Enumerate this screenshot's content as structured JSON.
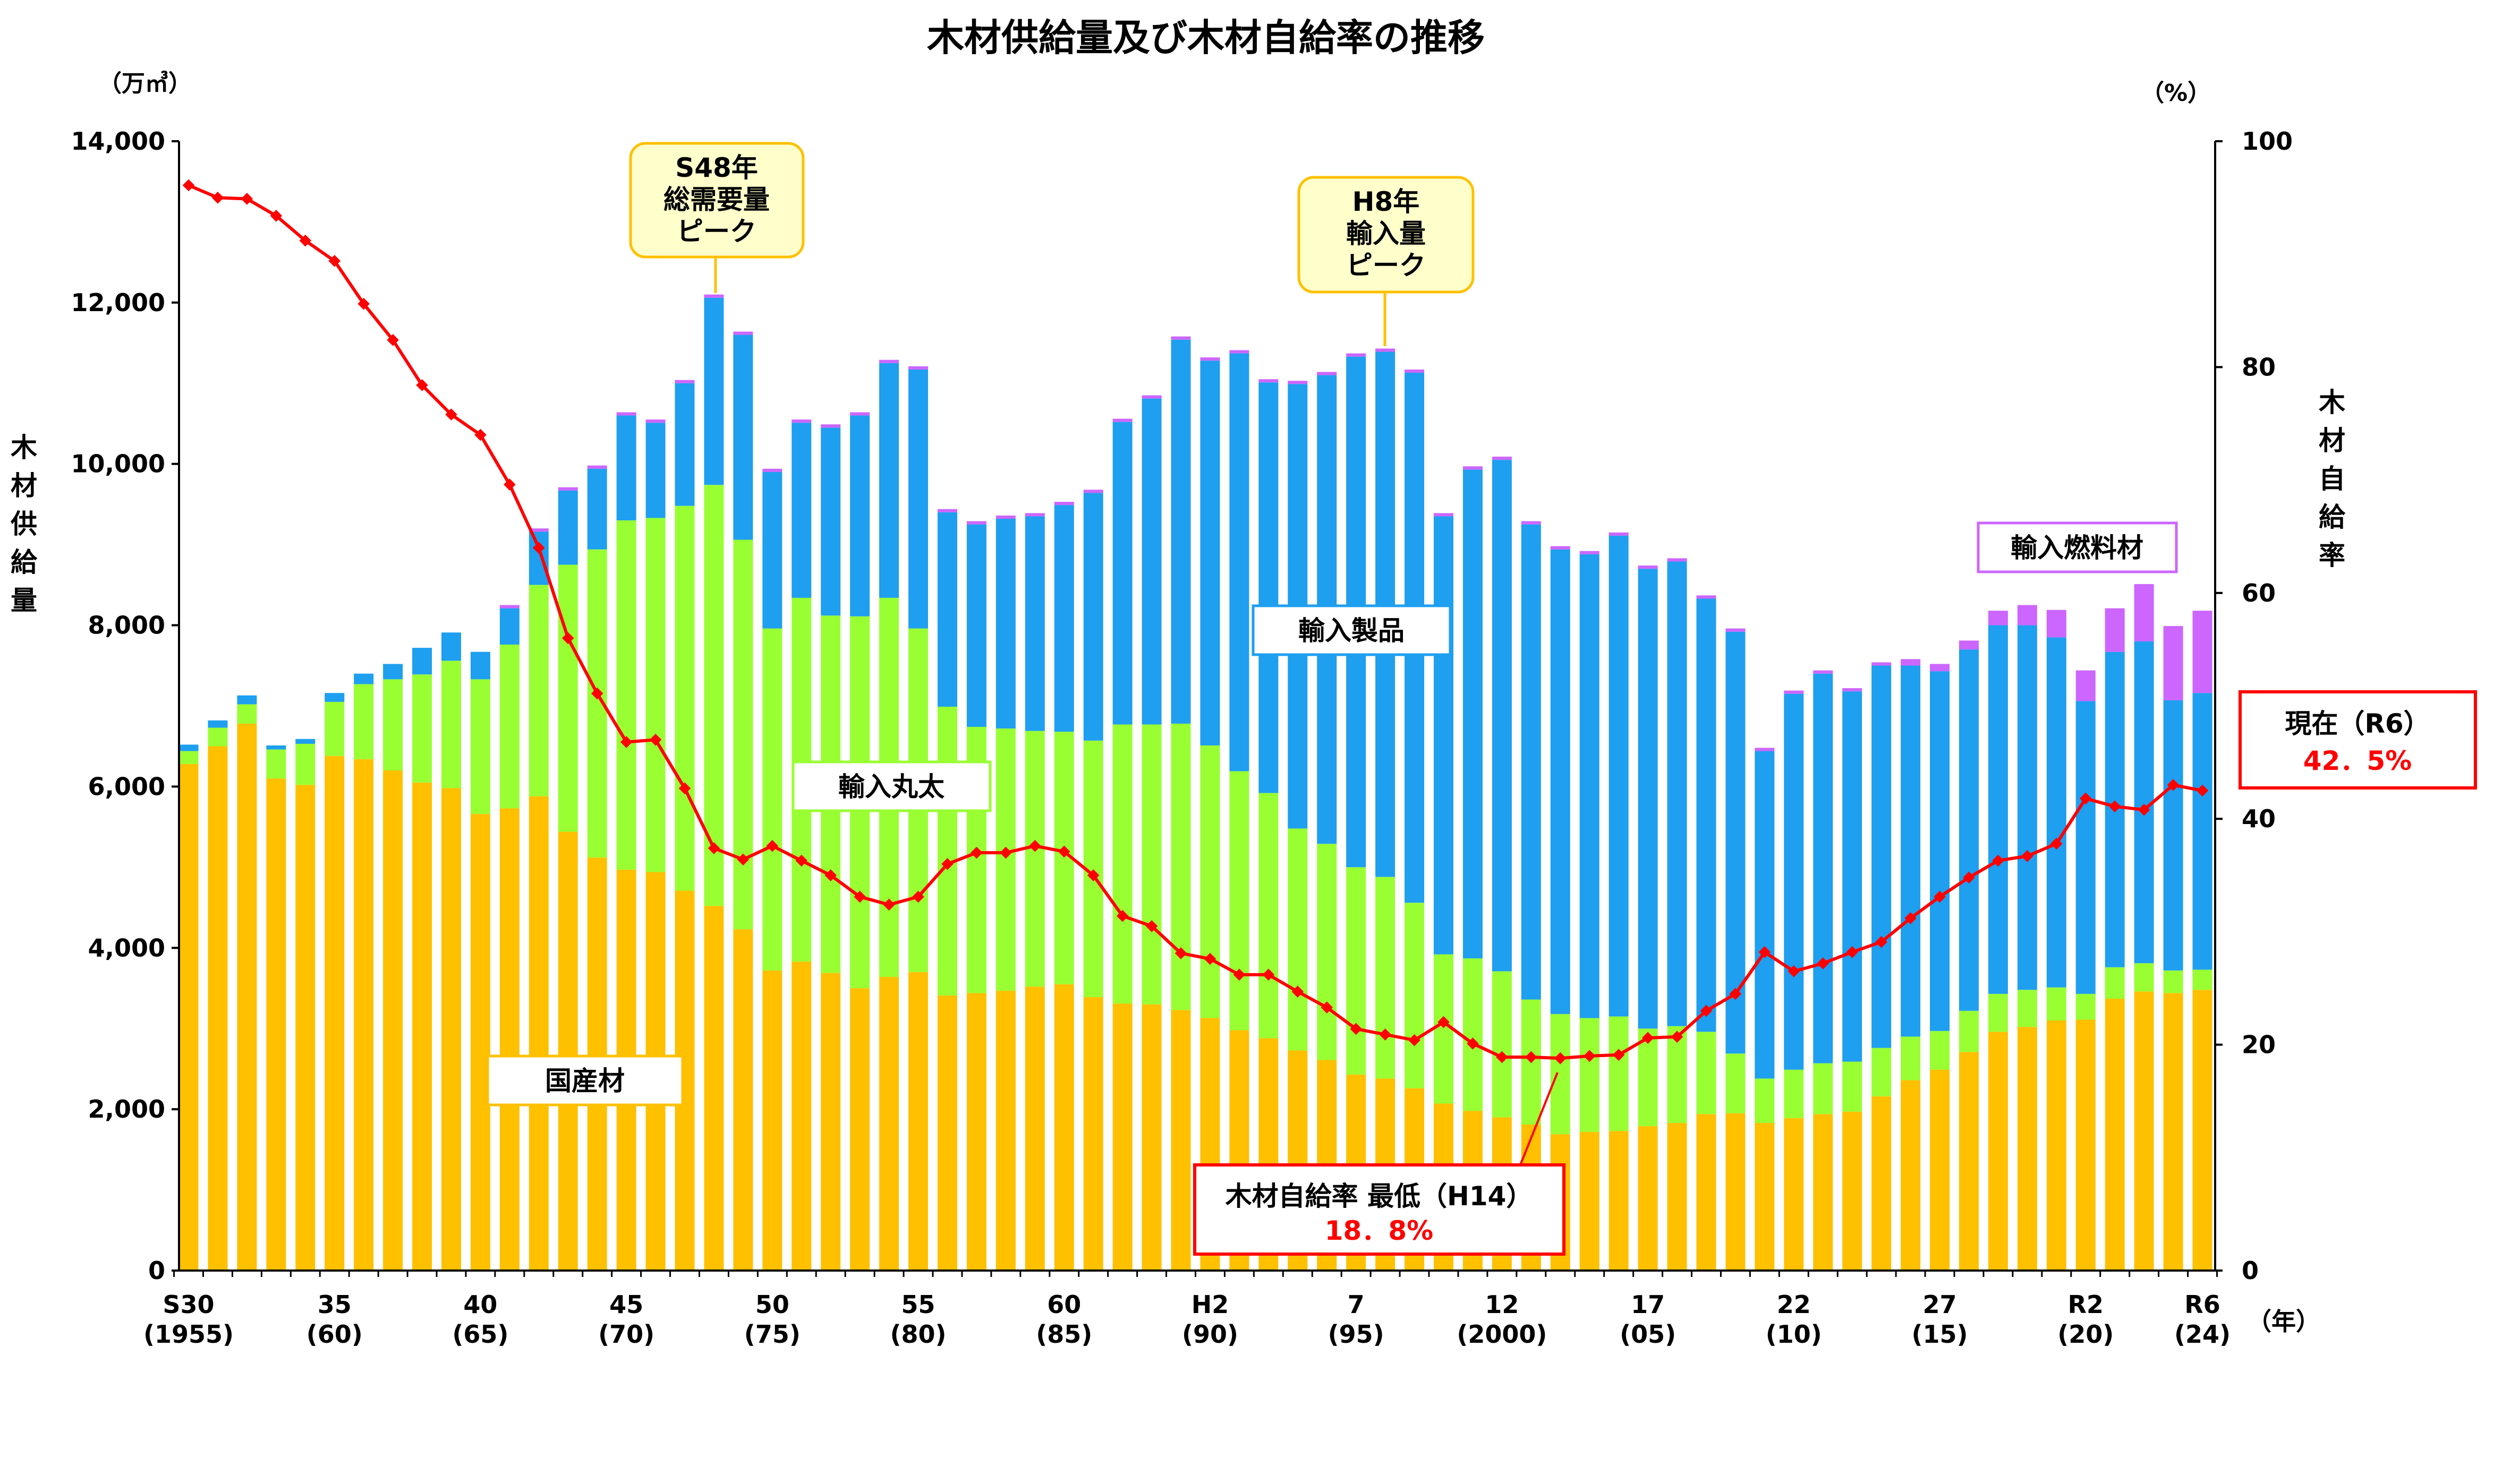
{
  "chart_data": {
    "type": "bar",
    "stacked": true,
    "title": "木材供給量及び木材自給率の推移",
    "y_left_unit": "（万㎥）",
    "y_right_unit": "（%）",
    "ylabel_left": [
      "木",
      "材",
      "供",
      "給",
      "量"
    ],
    "ylabel_right": [
      "木",
      "材",
      "自",
      "給",
      "率"
    ],
    "xlabel_unit": "（年）",
    "ylim_left": [
      0,
      14000
    ],
    "ylim_right": [
      0,
      100
    ],
    "y_left_ticks": [
      "0",
      "2,000",
      "4,000",
      "6,000",
      "8,000",
      "10,000",
      "12,000",
      "14,000"
    ],
    "y_right_ticks": [
      "0",
      "20",
      "40",
      "60",
      "80",
      "100"
    ],
    "x_years": [
      1955,
      1956,
      1957,
      1958,
      1959,
      1960,
      1961,
      1962,
      1963,
      1964,
      1965,
      1966,
      1967,
      1968,
      1969,
      1970,
      1971,
      1972,
      1973,
      1974,
      1975,
      1976,
      1977,
      1978,
      1979,
      1980,
      1981,
      1982,
      1983,
      1984,
      1985,
      1986,
      1987,
      1988,
      1989,
      1990,
      1991,
      1992,
      1993,
      1994,
      1995,
      1996,
      1997,
      1998,
      1999,
      2000,
      2001,
      2002,
      2003,
      2004,
      2005,
      2006,
      2007,
      2008,
      2009,
      2010,
      2011,
      2012,
      2013,
      2014,
      2015,
      2016,
      2017,
      2018,
      2019,
      2020,
      2021,
      2022,
      2023,
      2024
    ],
    "x_tick_labels": [
      {
        "index": 0,
        "era": "S30",
        "year": "(1955)"
      },
      {
        "index": 5,
        "era": "35",
        "year": "(60)"
      },
      {
        "index": 10,
        "era": "40",
        "year": "(65)"
      },
      {
        "index": 15,
        "era": "45",
        "year": "(70)"
      },
      {
        "index": 20,
        "era": "50",
        "year": "(75)"
      },
      {
        "index": 25,
        "era": "55",
        "year": "(80)"
      },
      {
        "index": 30,
        "era": "60",
        "year": "(85)"
      },
      {
        "index": 35,
        "era": "H2",
        "year": "(90)"
      },
      {
        "index": 40,
        "era": "7",
        "year": "(95)"
      },
      {
        "index": 45,
        "era": "12",
        "year": "(2000)"
      },
      {
        "index": 50,
        "era": "17",
        "year": "(05)"
      },
      {
        "index": 55,
        "era": "22",
        "year": "(10)"
      },
      {
        "index": 60,
        "era": "27",
        "year": "(15)"
      },
      {
        "index": 65,
        "era": "R2",
        "year": "(20)"
      },
      {
        "index": 69,
        "era": "R6",
        "year": "(24)"
      }
    ],
    "series": [
      {
        "name": "国産材",
        "color": "#FFC000",
        "values": [
          6280,
          6500,
          6780,
          6100,
          6020,
          6380,
          6340,
          6200,
          6050,
          5980,
          5660,
          5730,
          5880,
          5440,
          5120,
          4970,
          4940,
          4710,
          4520,
          4230,
          3720,
          3830,
          3690,
          3500,
          3640,
          3700,
          3410,
          3440,
          3470,
          3520,
          3550,
          3390,
          3310,
          3300,
          3230,
          3130,
          2980,
          2880,
          2730,
          2610,
          2430,
          2380,
          2260,
          2070,
          1980,
          1900,
          1810,
          1690,
          1720,
          1730,
          1790,
          1830,
          1940,
          1950,
          1830,
          1890,
          1940,
          1970,
          2160,
          2360,
          2490,
          2710,
          2960,
          3020,
          3100,
          3110,
          3370,
          3460,
          3440,
          3480
        ]
      },
      {
        "name": "輸入丸太",
        "color": "#99FF33",
        "values": [
          160,
          230,
          240,
          360,
          510,
          670,
          930,
          1130,
          1340,
          1580,
          1670,
          2030,
          2620,
          3310,
          3820,
          4330,
          4390,
          4770,
          5220,
          4830,
          4240,
          4510,
          4430,
          4610,
          4700,
          4260,
          3580,
          3300,
          3250,
          3170,
          3130,
          3180,
          3460,
          3470,
          3550,
          3380,
          3210,
          3040,
          2750,
          2680,
          2570,
          2500,
          2300,
          1850,
          1890,
          1810,
          1550,
          1490,
          1410,
          1420,
          1210,
          1200,
          1020,
          740,
          550,
          600,
          630,
          620,
          600,
          540,
          480,
          510,
          470,
          460,
          410,
          320,
          390,
          350,
          280,
          250
        ]
      },
      {
        "name": "輸入製品",
        "color": "#1E9FF0",
        "values": [
          80,
          90,
          110,
          50,
          60,
          110,
          130,
          190,
          330,
          350,
          340,
          450,
          660,
          920,
          1000,
          1300,
          1180,
          1520,
          2320,
          2540,
          1940,
          2170,
          2330,
          2490,
          2910,
          3210,
          2410,
          2510,
          2600,
          2660,
          2810,
          3070,
          3750,
          4040,
          4760,
          4770,
          5180,
          5090,
          5510,
          5810,
          6330,
          6510,
          6570,
          5430,
          6060,
          6340,
          5890,
          5760,
          5750,
          5960,
          5700,
          5760,
          5370,
          5230,
          4060,
          4660,
          4830,
          4590,
          4740,
          4600,
          4460,
          4480,
          4570,
          4520,
          4340,
          3630,
          3910,
          3990,
          3350,
          3430
        ]
      },
      {
        "name": "輸入燃料材",
        "color": "#CC66FF",
        "values": [
          0,
          0,
          0,
          0,
          0,
          0,
          0,
          0,
          0,
          0,
          0,
          40,
          40,
          40,
          40,
          40,
          40,
          40,
          40,
          40,
          40,
          40,
          40,
          40,
          40,
          40,
          40,
          40,
          40,
          40,
          40,
          40,
          40,
          40,
          40,
          40,
          40,
          40,
          40,
          40,
          40,
          40,
          40,
          40,
          40,
          40,
          40,
          40,
          40,
          40,
          40,
          40,
          40,
          40,
          40,
          40,
          40,
          40,
          40,
          80,
          90,
          110,
          180,
          250,
          340,
          380,
          540,
          710,
          920,
          1020
        ]
      }
    ],
    "line": {
      "name": "木材自給率",
      "color": "#FF0000",
      "axis": "right",
      "values": [
        96.1,
        95.0,
        94.9,
        93.4,
        91.2,
        89.4,
        85.6,
        82.4,
        78.4,
        75.8,
        74.0,
        69.6,
        64.0,
        56.0,
        51.1,
        46.8,
        47.0,
        42.7,
        37.4,
        36.4,
        37.6,
        36.3,
        35.0,
        33.1,
        32.4,
        33.1,
        36.0,
        37.0,
        37.0,
        37.6,
        37.1,
        35.0,
        31.4,
        30.5,
        28.1,
        27.6,
        26.2,
        26.2,
        24.7,
        23.3,
        21.4,
        20.9,
        20.4,
        22.0,
        20.1,
        18.9,
        18.9,
        18.8,
        19.0,
        19.1,
        20.6,
        20.7,
        23.0,
        24.5,
        28.2,
        26.5,
        27.2,
        28.2,
        29.1,
        31.2,
        33.1,
        34.8,
        36.3,
        36.7,
        37.8,
        41.8,
        41.1,
        40.8,
        43.0,
        42.5
      ]
    },
    "annotations": {
      "peak_demand": [
        "S48年",
        "総需要量",
        "ピーク"
      ],
      "peak_import": [
        "H8年",
        "輸入量",
        "ピーク"
      ],
      "label_products": "輸入製品",
      "label_logs": "輸入丸太",
      "label_domestic": "国産材",
      "label_fuel": "輸入燃料材",
      "current_title": "現在（R6）",
      "current_value": "42．5%",
      "lowest_title": "木材自給率 最低（H14）",
      "lowest_value": "18．8%"
    }
  }
}
